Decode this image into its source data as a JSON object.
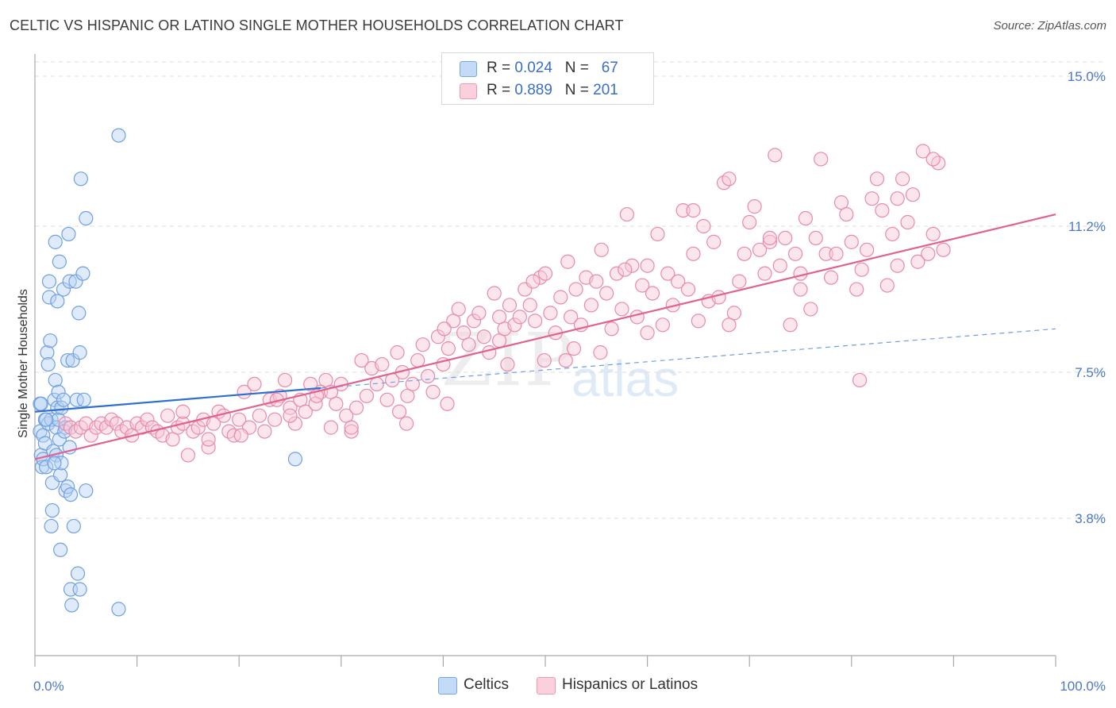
{
  "title": "CELTIC VS HISPANIC OR LATINO SINGLE MOTHER HOUSEHOLDS CORRELATION CHART",
  "source": "Source: ZipAtlas.com",
  "watermark": {
    "part1": "ZIP",
    "part2": "atlas"
  },
  "legend": {
    "rows": [
      {
        "r_label": "R = ",
        "r_value": "0.024",
        "n_label": "N = ",
        "n_value": "67",
        "color": "#aecbf2"
      },
      {
        "r_label": "R = ",
        "r_value": "0.889",
        "n_label": "N = ",
        "n_value": "201",
        "color": "#f7b6c8"
      }
    ]
  },
  "bottom_legend": [
    {
      "label": "Celtics",
      "color": "#aecbf2"
    },
    {
      "label": "Hispanics or Latinos",
      "color": "#f7b6c8"
    }
  ],
  "chart_data": {
    "type": "scatter",
    "ylabel": "Single Mother Households",
    "xlabel": "",
    "x_tick_labels": [
      "0.0%",
      "100.0%"
    ],
    "y_tick_labels": [
      "3.8%",
      "7.5%",
      "11.2%",
      "15.0%"
    ],
    "y_ticks": [
      3.8,
      7.5,
      11.2,
      15.0
    ],
    "xlim": [
      0,
      100
    ],
    "ylim": [
      0.0,
      15.5
    ],
    "grid": true,
    "legend_position": "top-center",
    "series": [
      {
        "name": "Celtics",
        "color": "#6fa0e0",
        "fill": "#b9d3f5",
        "trend": {
          "x0": 0,
          "y0": 6.5,
          "x1": 28,
          "y1": 7.1,
          "dashed_to": 100,
          "dashed_y": 8.6
        },
        "points": [
          [
            0.5,
            6.7
          ],
          [
            0.5,
            6.0
          ],
          [
            0.6,
            5.4
          ],
          [
            0.7,
            5.1
          ],
          [
            0.8,
            5.9
          ],
          [
            0.8,
            5.3
          ],
          [
            1.0,
            6.3
          ],
          [
            1.0,
            5.7
          ],
          [
            1.1,
            5.1
          ],
          [
            1.2,
            8.0
          ],
          [
            1.3,
            7.7
          ],
          [
            1.3,
            6.2
          ],
          [
            1.4,
            9.8
          ],
          [
            1.4,
            9.4
          ],
          [
            1.5,
            8.3
          ],
          [
            1.6,
            6.3
          ],
          [
            1.7,
            4.7
          ],
          [
            1.7,
            4.0
          ],
          [
            1.8,
            5.5
          ],
          [
            1.9,
            6.8
          ],
          [
            2.0,
            7.3
          ],
          [
            2.0,
            10.8
          ],
          [
            2.1,
            6.1
          ],
          [
            2.1,
            5.4
          ],
          [
            2.2,
            9.3
          ],
          [
            2.2,
            6.6
          ],
          [
            2.3,
            7.0
          ],
          [
            2.3,
            6.3
          ],
          [
            2.4,
            10.3
          ],
          [
            2.4,
            5.8
          ],
          [
            2.5,
            4.9
          ],
          [
            2.5,
            3.0
          ],
          [
            2.6,
            6.6
          ],
          [
            2.6,
            5.2
          ],
          [
            2.8,
            9.6
          ],
          [
            2.8,
            6.8
          ],
          [
            3.0,
            4.5
          ],
          [
            3.0,
            6.1
          ],
          [
            3.2,
            7.8
          ],
          [
            3.2,
            4.6
          ],
          [
            3.3,
            11.0
          ],
          [
            3.4,
            9.8
          ],
          [
            3.4,
            5.6
          ],
          [
            3.5,
            4.4
          ],
          [
            3.5,
            2.0
          ],
          [
            3.6,
            1.6
          ],
          [
            3.7,
            7.8
          ],
          [
            3.8,
            3.6
          ],
          [
            4.0,
            9.8
          ],
          [
            4.1,
            6.8
          ],
          [
            4.2,
            2.4
          ],
          [
            4.3,
            9.0
          ],
          [
            4.4,
            8.0
          ],
          [
            4.4,
            2.0
          ],
          [
            4.5,
            12.4
          ],
          [
            4.7,
            10.0
          ],
          [
            4.8,
            6.8
          ],
          [
            5.0,
            4.5
          ],
          [
            5.0,
            11.4
          ],
          [
            8.2,
            13.5
          ],
          [
            8.2,
            1.5
          ],
          [
            25.5,
            5.3
          ],
          [
            1.6,
            3.6
          ],
          [
            1.1,
            6.3
          ],
          [
            2.9,
            6.0
          ],
          [
            0.6,
            6.7
          ],
          [
            1.9,
            5.2
          ]
        ]
      },
      {
        "name": "Hispanics or Latinos",
        "color": "#e88aa8",
        "fill": "#f9c8d6",
        "trend": {
          "x0": 0,
          "y0": 5.3,
          "x1": 100,
          "y1": 11.5
        },
        "points": [
          [
            3.0,
            6.2
          ],
          [
            3.5,
            6.1
          ],
          [
            4.0,
            6.0
          ],
          [
            4.5,
            6.1
          ],
          [
            5.0,
            6.2
          ],
          [
            5.5,
            5.9
          ],
          [
            6.0,
            6.1
          ],
          [
            6.5,
            6.2
          ],
          [
            7.0,
            6.1
          ],
          [
            7.5,
            6.3
          ],
          [
            8.0,
            6.2
          ],
          [
            8.5,
            6.0
          ],
          [
            9.0,
            6.1
          ],
          [
            9.5,
            5.9
          ],
          [
            10.0,
            6.2
          ],
          [
            10.5,
            6.1
          ],
          [
            11.0,
            6.3
          ],
          [
            11.5,
            6.1
          ],
          [
            12.0,
            6.0
          ],
          [
            12.5,
            5.9
          ],
          [
            13.0,
            6.4
          ],
          [
            13.5,
            5.8
          ],
          [
            14.0,
            6.1
          ],
          [
            14.5,
            6.2
          ],
          [
            15.0,
            5.4
          ],
          [
            15.5,
            6.0
          ],
          [
            16.0,
            6.1
          ],
          [
            16.5,
            6.3
          ],
          [
            17.0,
            5.6
          ],
          [
            17.5,
            6.2
          ],
          [
            18.0,
            6.5
          ],
          [
            18.5,
            6.4
          ],
          [
            19.0,
            6.0
          ],
          [
            19.5,
            5.9
          ],
          [
            20.0,
            6.3
          ],
          [
            20.5,
            7.0
          ],
          [
            21.0,
            6.1
          ],
          [
            21.5,
            7.2
          ],
          [
            22.0,
            6.4
          ],
          [
            22.5,
            6.0
          ],
          [
            23.0,
            6.8
          ],
          [
            23.5,
            6.3
          ],
          [
            24.0,
            6.9
          ],
          [
            24.5,
            7.3
          ],
          [
            25.0,
            6.6
          ],
          [
            25.5,
            6.2
          ],
          [
            26.0,
            6.8
          ],
          [
            26.5,
            6.5
          ],
          [
            27.0,
            7.2
          ],
          [
            27.5,
            6.7
          ],
          [
            28.0,
            7.0
          ],
          [
            28.5,
            7.3
          ],
          [
            29.0,
            6.1
          ],
          [
            29.5,
            6.7
          ],
          [
            30.0,
            7.2
          ],
          [
            30.5,
            6.4
          ],
          [
            31.0,
            6.0
          ],
          [
            31.5,
            6.6
          ],
          [
            32.0,
            7.8
          ],
          [
            32.5,
            6.9
          ],
          [
            33.0,
            7.6
          ],
          [
            33.5,
            7.2
          ],
          [
            34.0,
            7.7
          ],
          [
            34.5,
            6.8
          ],
          [
            35.0,
            7.3
          ],
          [
            35.5,
            8.0
          ],
          [
            36.0,
            7.5
          ],
          [
            36.5,
            6.9
          ],
          [
            37.0,
            7.2
          ],
          [
            37.5,
            7.8
          ],
          [
            38.0,
            8.2
          ],
          [
            38.5,
            7.4
          ],
          [
            39.0,
            7.0
          ],
          [
            39.5,
            8.4
          ],
          [
            40.0,
            7.7
          ],
          [
            40.5,
            8.1
          ],
          [
            41.0,
            8.8
          ],
          [
            41.5,
            9.1
          ],
          [
            42.0,
            8.5
          ],
          [
            42.5,
            8.2
          ],
          [
            43.0,
            8.8
          ],
          [
            43.5,
            9.0
          ],
          [
            44.0,
            8.4
          ],
          [
            44.5,
            8.0
          ],
          [
            45.0,
            9.5
          ],
          [
            45.5,
            8.3
          ],
          [
            46.0,
            8.6
          ],
          [
            46.5,
            9.2
          ],
          [
            47.0,
            8.7
          ],
          [
            47.5,
            8.9
          ],
          [
            48.0,
            9.6
          ],
          [
            48.5,
            9.2
          ],
          [
            49.0,
            8.8
          ],
          [
            49.5,
            9.9
          ],
          [
            50.0,
            10.0
          ],
          [
            50.5,
            9.0
          ],
          [
            51.0,
            8.5
          ],
          [
            51.5,
            9.4
          ],
          [
            52.0,
            7.8
          ],
          [
            52.5,
            8.9
          ],
          [
            53.0,
            9.6
          ],
          [
            53.5,
            8.7
          ],
          [
            54.0,
            9.9
          ],
          [
            54.5,
            9.2
          ],
          [
            55.0,
            9.8
          ],
          [
            55.5,
            10.6
          ],
          [
            56.0,
            9.5
          ],
          [
            56.5,
            8.6
          ],
          [
            57.0,
            10.0
          ],
          [
            57.5,
            9.1
          ],
          [
            58.0,
            11.5
          ],
          [
            58.5,
            10.2
          ],
          [
            59.0,
            8.9
          ],
          [
            59.5,
            9.7
          ],
          [
            60.0,
            10.2
          ],
          [
            60.5,
            9.5
          ],
          [
            61.0,
            11.0
          ],
          [
            61.5,
            8.7
          ],
          [
            62.0,
            10.0
          ],
          [
            62.5,
            9.2
          ],
          [
            63.0,
            9.8
          ],
          [
            63.5,
            11.6
          ],
          [
            64.0,
            9.6
          ],
          [
            64.5,
            10.5
          ],
          [
            65.0,
            8.8
          ],
          [
            65.5,
            11.2
          ],
          [
            66.0,
            9.3
          ],
          [
            66.5,
            10.8
          ],
          [
            67.0,
            9.4
          ],
          [
            67.5,
            12.3
          ],
          [
            68.0,
            12.4
          ],
          [
            68.5,
            9.0
          ],
          [
            69.0,
            9.8
          ],
          [
            69.5,
            10.5
          ],
          [
            70.0,
            11.3
          ],
          [
            70.5,
            11.7
          ],
          [
            71.0,
            10.6
          ],
          [
            71.5,
            10.0
          ],
          [
            72.0,
            10.8
          ],
          [
            72.5,
            13.0
          ],
          [
            73.0,
            10.2
          ],
          [
            73.5,
            10.9
          ],
          [
            74.0,
            8.7
          ],
          [
            74.5,
            10.5
          ],
          [
            75.0,
            10.0
          ],
          [
            75.5,
            11.4
          ],
          [
            76.0,
            9.1
          ],
          [
            76.5,
            10.9
          ],
          [
            77.0,
            12.9
          ],
          [
            77.5,
            10.5
          ],
          [
            78.0,
            9.9
          ],
          [
            78.5,
            10.5
          ],
          [
            79.0,
            11.8
          ],
          [
            79.5,
            11.5
          ],
          [
            80.0,
            10.8
          ],
          [
            80.5,
            9.6
          ],
          [
            81.0,
            10.1
          ],
          [
            81.5,
            10.6
          ],
          [
            82.0,
            11.9
          ],
          [
            82.5,
            12.4
          ],
          [
            83.0,
            11.6
          ],
          [
            83.5,
            9.7
          ],
          [
            84.0,
            11.0
          ],
          [
            84.5,
            11.9
          ],
          [
            85.0,
            12.4
          ],
          [
            85.5,
            11.3
          ],
          [
            86.0,
            12.0
          ],
          [
            86.5,
            10.3
          ],
          [
            87.0,
            13.1
          ],
          [
            87.5,
            10.5
          ],
          [
            88.0,
            11.0
          ],
          [
            88.5,
            12.8
          ],
          [
            89.0,
            10.6
          ],
          [
            17.0,
            5.8
          ],
          [
            20.2,
            5.9
          ],
          [
            25.0,
            6.4
          ],
          [
            29.0,
            7.0
          ],
          [
            35.7,
            6.5
          ],
          [
            36.4,
            6.2
          ],
          [
            40.4,
            6.7
          ],
          [
            45.5,
            8.9
          ],
          [
            49.9,
            7.8
          ],
          [
            52.8,
            8.1
          ],
          [
            55.4,
            8.0
          ],
          [
            60.0,
            8.5
          ],
          [
            64.5,
            11.6
          ],
          [
            72.0,
            10.9
          ],
          [
            80.8,
            7.3
          ],
          [
            84.5,
            10.2
          ],
          [
            88.0,
            12.9
          ],
          [
            68.0,
            8.7
          ],
          [
            75.0,
            9.6
          ],
          [
            14.5,
            6.5
          ],
          [
            23.7,
            6.8
          ],
          [
            40.1,
            8.6
          ],
          [
            46.3,
            7.7
          ],
          [
            31.0,
            6.1
          ],
          [
            48.8,
            9.8
          ],
          [
            27.6,
            6.9
          ],
          [
            52.2,
            10.3
          ],
          [
            57.8,
            10.1
          ]
        ]
      }
    ]
  }
}
